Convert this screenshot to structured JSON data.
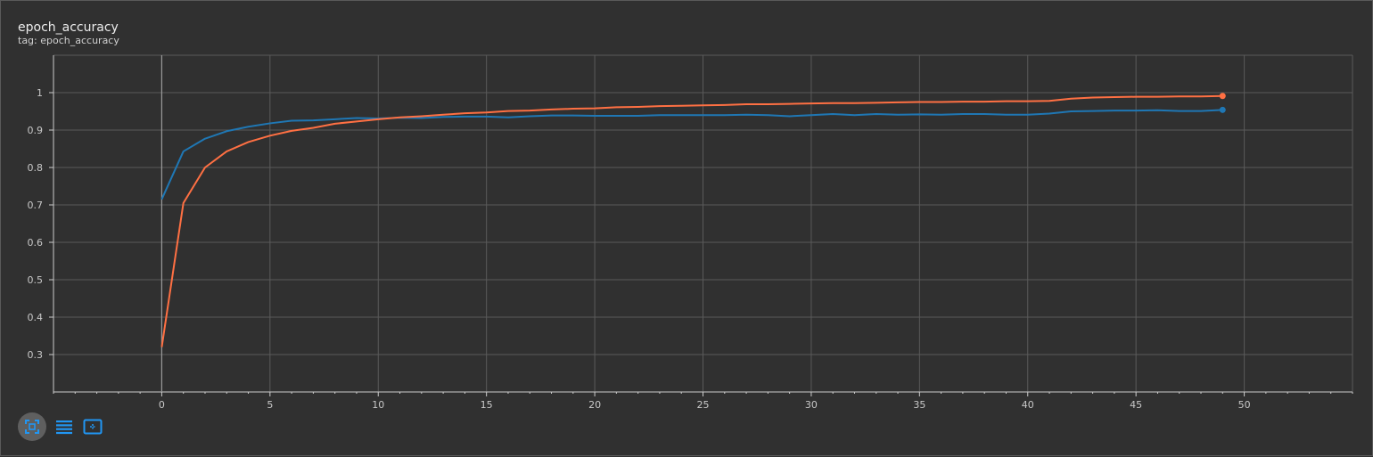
{
  "header": {
    "title": "epoch_accuracy",
    "subtitle": "tag: epoch_accuracy"
  },
  "colors": {
    "background": "#303030",
    "grid": "#5a5a5a",
    "axis": "#cccccc",
    "toolbar_blue": "#2196f3"
  },
  "toolbar": {
    "icons": [
      "fit-domain-icon",
      "toggle-legend-icon",
      "select-region-icon"
    ]
  },
  "chart_data": {
    "type": "line",
    "title": "epoch_accuracy",
    "xlabel": "",
    "ylabel": "",
    "xlim": [
      -5,
      55
    ],
    "ylim": [
      0.2,
      1.1
    ],
    "x_ticks": [
      0,
      5,
      10,
      15,
      20,
      25,
      30,
      35,
      40,
      45,
      50
    ],
    "y_ticks": [
      0.3,
      0.4,
      0.5,
      0.6,
      0.7,
      0.8,
      0.9,
      1
    ],
    "grid": true,
    "series": [
      {
        "color": "#1f77b4",
        "values": [
          0.715,
          0.843,
          0.877,
          0.897,
          0.909,
          0.918,
          0.925,
          0.926,
          0.929,
          0.932,
          0.931,
          0.933,
          0.932,
          0.935,
          0.936,
          0.936,
          0.934,
          0.937,
          0.939,
          0.939,
          0.938,
          0.938,
          0.938,
          0.94,
          0.94,
          0.94,
          0.94,
          0.941,
          0.94,
          0.937,
          0.94,
          0.943,
          0.94,
          0.943,
          0.941,
          0.942,
          0.941,
          0.943,
          0.943,
          0.941,
          0.941,
          0.944,
          0.95,
          0.951,
          0.952,
          0.952,
          0.953,
          0.951,
          0.951,
          0.954
        ]
      },
      {
        "color": "#ff7043",
        "values": [
          0.32,
          0.705,
          0.8,
          0.843,
          0.868,
          0.885,
          0.898,
          0.906,
          0.917,
          0.923,
          0.929,
          0.934,
          0.937,
          0.941,
          0.945,
          0.947,
          0.951,
          0.952,
          0.955,
          0.957,
          0.958,
          0.961,
          0.962,
          0.964,
          0.965,
          0.966,
          0.967,
          0.969,
          0.969,
          0.97,
          0.971,
          0.972,
          0.972,
          0.973,
          0.974,
          0.975,
          0.975,
          0.976,
          0.976,
          0.977,
          0.977,
          0.978,
          0.984,
          0.987,
          0.988,
          0.989,
          0.989,
          0.99,
          0.99,
          0.991
        ]
      }
    ]
  }
}
